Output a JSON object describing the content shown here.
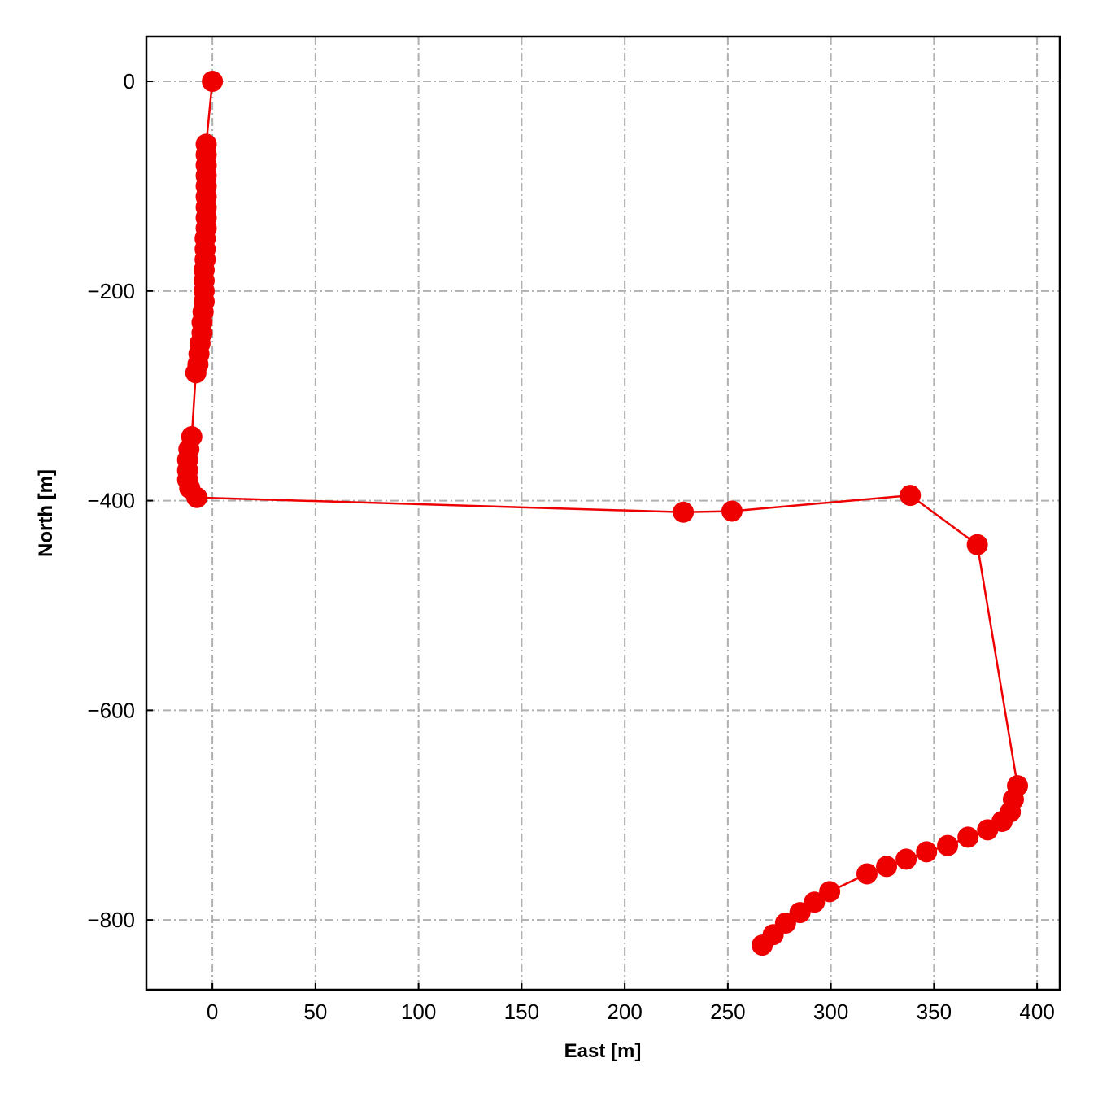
{
  "chart_data": {
    "type": "line",
    "x_label": "East [m]",
    "y_label": "North [m]",
    "x": [
      0,
      -3,
      -3,
      -3,
      -3,
      -3,
      -3,
      -3,
      -3,
      -3,
      -3.5,
      -3.5,
      -3.5,
      -4,
      -4,
      -4,
      -4,
      -4.5,
      -5,
      -5,
      -6,
      -6.5,
      -7,
      -8,
      -10,
      -11.4,
      -12,
      -12,
      -12,
      -11,
      -7.5,
      228.4,
      252,
      338.5,
      371,
      390.5,
      388.5,
      387,
      383,
      376,
      366.5,
      356.6,
      346.4,
      336.5,
      327,
      317.5,
      299.4,
      292,
      285,
      278,
      272,
      266.7
    ],
    "values": [
      0,
      -60,
      -70,
      -80,
      -90,
      -100,
      -110,
      -120,
      -130,
      -140,
      -150,
      -160,
      -170,
      -180,
      -190,
      -200,
      -210,
      -220,
      -230,
      -240,
      -250,
      -260,
      -270,
      -278,
      -339,
      -351,
      -361,
      -371,
      -380,
      -388,
      -397,
      -411,
      -410,
      -395,
      -442,
      -672,
      -685,
      -697,
      -706,
      -714,
      -721,
      -729,
      -735,
      -742,
      -749,
      -756,
      -773,
      -783,
      -793,
      -803,
      -814,
      -824
    ],
    "color": "#ee0000",
    "xlim": [
      -32,
      411
    ],
    "ylim": [
      -866.6,
      42.7
    ],
    "xticks": [
      0,
      50,
      100,
      150,
      200,
      250,
      300,
      350,
      400
    ],
    "yticks": [
      {
        "value": -800,
        "label": "−800"
      },
      {
        "value": -600,
        "label": "−600"
      },
      {
        "value": -400,
        "label": "−400"
      },
      {
        "value": -200,
        "label": "−200"
      },
      0
    ],
    "grid": true
  }
}
